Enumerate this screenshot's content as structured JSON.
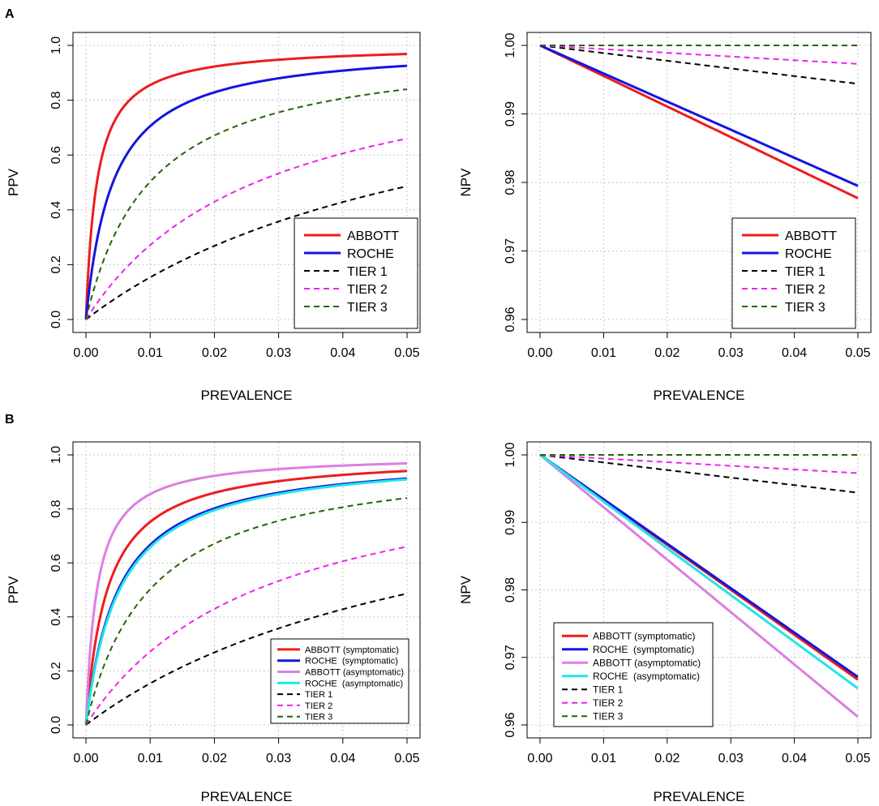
{
  "panel_labels": [
    "A",
    "B"
  ],
  "colors": {
    "abbott": "#ee1c1c",
    "roche": "#1414e0",
    "abbott_asym": "#dd7ee0",
    "roche_asym": "#22e5e5",
    "tier1": "#000000",
    "tier2": "#ee22ee",
    "tier3": "#226600",
    "grid": "#c8c8c8"
  },
  "chart_data": [
    {
      "type": "line",
      "panel": "A",
      "xlabel": "PREVALENCE",
      "ylabel": "PPV",
      "xlim": [
        0,
        0.05
      ],
      "ylim": [
        0,
        1
      ],
      "xticks": [
        "0.00",
        "0.01",
        "0.02",
        "0.03",
        "0.04",
        "0.05"
      ],
      "yticks": [
        "0.0",
        "0.2",
        "0.4",
        "0.6",
        "0.8",
        "1.0"
      ],
      "metric": "ppv",
      "legend_position": "bottom-right",
      "series": [
        {
          "name": "ABBOTT",
          "sens": 0.996,
          "spec": 0.9983,
          "color_key": "abbott",
          "dash": "solid"
        },
        {
          "name": "ROCHE",
          "sens": 0.9957,
          "spec": 0.9958,
          "color_key": "roche",
          "dash": "solid"
        },
        {
          "name": "TIER 1",
          "sens": 0.5,
          "spec": 0.9722,
          "color_key": "tier1",
          "dash": "dashed"
        },
        {
          "name": "TIER 2",
          "sens": 0.9,
          "spec": 0.9756,
          "color_key": "tier2",
          "dash": "dashed"
        },
        {
          "name": "TIER 3",
          "sens": 1.0,
          "spec": 0.99,
          "color_key": "tier3",
          "dash": "dashed"
        }
      ]
    },
    {
      "type": "line",
      "panel": "A",
      "xlabel": "PREVALENCE",
      "ylabel": "NPV",
      "xlim": [
        0,
        0.05
      ],
      "ylim": [
        0.96,
        1
      ],
      "xticks": [
        "0.00",
        "0.01",
        "0.02",
        "0.03",
        "0.04",
        "0.05"
      ],
      "yticks": [
        "0.96",
        "0.97",
        "0.98",
        "0.99",
        "1.00"
      ],
      "metric": "npv",
      "legend_position": "bottom-right",
      "series": [
        {
          "name": "ABBOTT",
          "npv_at_005": 0.9777,
          "color_key": "abbott",
          "dash": "solid"
        },
        {
          "name": "ROCHE",
          "npv_at_005": 0.9795,
          "color_key": "roche",
          "dash": "solid"
        },
        {
          "name": "TIER 1",
          "npv_at_005": 0.9944,
          "color_key": "tier1",
          "dash": "dashed"
        },
        {
          "name": "TIER 2",
          "npv_at_005": 0.9973,
          "color_key": "tier2",
          "dash": "dashed"
        },
        {
          "name": "TIER 3",
          "npv_at_005": 1.0,
          "color_key": "tier3",
          "dash": "dashed"
        }
      ]
    },
    {
      "type": "line",
      "panel": "B",
      "xlabel": "PREVALENCE",
      "ylabel": "PPV",
      "xlim": [
        0,
        0.05
      ],
      "ylim": [
        0,
        1
      ],
      "xticks": [
        "0.00",
        "0.01",
        "0.02",
        "0.03",
        "0.04",
        "0.05"
      ],
      "yticks": [
        "0.0",
        "0.2",
        "0.4",
        "0.6",
        "0.8",
        "1.0"
      ],
      "metric": "ppv",
      "legend_position": "bottom-right",
      "series": [
        {
          "name": "ABBOTT (symptomatic)",
          "sens": 0.99,
          "spec": 0.9967,
          "color_key": "abbott",
          "dash": "solid"
        },
        {
          "name": "ROCHE  (symptomatic)",
          "sens": 0.99,
          "spec": 0.995,
          "color_key": "roche",
          "dash": "solid"
        },
        {
          "name": "ABBOTT (asymptomatic)",
          "sens": 0.99,
          "spec": 0.9983,
          "color_key": "abbott_asym",
          "dash": "solid"
        },
        {
          "name": "ROCHE  (asymptomatic)",
          "sens": 0.99,
          "spec": 0.9948,
          "color_key": "roche_asym",
          "dash": "solid"
        },
        {
          "name": "TIER 1",
          "sens": 0.5,
          "spec": 0.9722,
          "color_key": "tier1",
          "dash": "dashed"
        },
        {
          "name": "TIER 2",
          "sens": 0.9,
          "spec": 0.9756,
          "color_key": "tier2",
          "dash": "dashed"
        },
        {
          "name": "TIER 3",
          "sens": 1.0,
          "spec": 0.99,
          "color_key": "tier3",
          "dash": "dashed"
        }
      ]
    },
    {
      "type": "line",
      "panel": "B",
      "xlabel": "PREVALENCE",
      "ylabel": "NPV",
      "xlim": [
        0,
        0.05
      ],
      "ylim": [
        0.96,
        1
      ],
      "xticks": [
        "0.00",
        "0.01",
        "0.02",
        "0.03",
        "0.04",
        "0.05"
      ],
      "yticks": [
        "0.96",
        "0.97",
        "0.98",
        "0.99",
        "1.00"
      ],
      "metric": "npv",
      "legend_position": "bottom-left",
      "series": [
        {
          "name": "ABBOTT (symptomatic)",
          "npv_at_005": 0.9667,
          "color_key": "abbott",
          "dash": "solid"
        },
        {
          "name": "ROCHE  (symptomatic)",
          "npv_at_005": 0.9671,
          "color_key": "roche",
          "dash": "solid"
        },
        {
          "name": "ABBOTT (asymptomatic)",
          "npv_at_005": 0.9612,
          "color_key": "abbott_asym",
          "dash": "solid"
        },
        {
          "name": "ROCHE  (asymptomatic)",
          "npv_at_005": 0.9654,
          "color_key": "roche_asym",
          "dash": "solid"
        },
        {
          "name": "TIER 1",
          "npv_at_005": 0.9944,
          "color_key": "tier1",
          "dash": "dashed"
        },
        {
          "name": "TIER 2",
          "npv_at_005": 0.9973,
          "color_key": "tier2",
          "dash": "dashed"
        },
        {
          "name": "TIER 3",
          "npv_at_005": 1.0,
          "color_key": "tier3",
          "dash": "dashed"
        }
      ]
    }
  ]
}
